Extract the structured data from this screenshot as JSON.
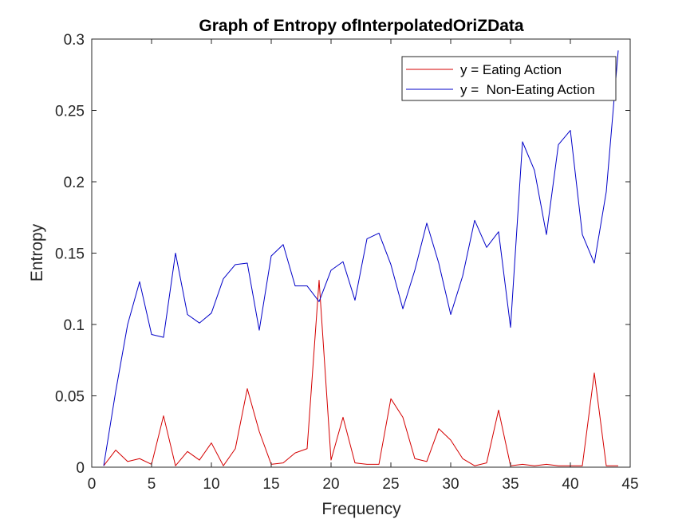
{
  "chart_data": {
    "type": "line",
    "title": "Graph of Entropy ofInterpolatedOriZData",
    "xlabel": "Frequency",
    "ylabel": "Entropy",
    "xlim": [
      0,
      45
    ],
    "ylim": [
      0,
      0.3
    ],
    "xticks": [
      0,
      5,
      10,
      15,
      20,
      25,
      30,
      35,
      40,
      45
    ],
    "yticks": [
      0,
      0.05,
      0.1,
      0.15,
      0.2,
      0.25,
      0.3
    ],
    "xtick_labels": [
      "0",
      "5",
      "10",
      "15",
      "20",
      "25",
      "30",
      "35",
      "40",
      "45"
    ],
    "ytick_labels": [
      "0",
      "0.05",
      "0.1",
      "0.15",
      "0.2",
      "0.25",
      "0.3"
    ],
    "grid": false,
    "legend_position": "top-right",
    "x": [
      1,
      2,
      3,
      4,
      5,
      6,
      7,
      8,
      9,
      10,
      11,
      12,
      13,
      14,
      15,
      16,
      17,
      18,
      19,
      20,
      21,
      22,
      23,
      24,
      25,
      26,
      27,
      28,
      29,
      30,
      31,
      32,
      33,
      34,
      35,
      36,
      37,
      38,
      39,
      40,
      41,
      42,
      43,
      44
    ],
    "series": [
      {
        "name": "y = Eating Action",
        "color": "#d40000",
        "values": [
          0.001,
          0.012,
          0.004,
          0.006,
          0.002,
          0.036,
          0.001,
          0.011,
          0.005,
          0.017,
          0.001,
          0.013,
          0.055,
          0.025,
          0.002,
          0.003,
          0.01,
          0.013,
          0.131,
          0.005,
          0.035,
          0.003,
          0.002,
          0.002,
          0.048,
          0.035,
          0.006,
          0.004,
          0.027,
          0.019,
          0.006,
          0.001,
          0.003,
          0.04,
          0.001,
          0.002,
          0.001,
          0.002,
          0.001,
          0.001,
          0.001,
          0.066,
          0.001,
          0.001
        ]
      },
      {
        "name": "y =  Non-Eating Action",
        "color": "#0000c8",
        "values": [
          0.001,
          0.053,
          0.1,
          0.13,
          0.093,
          0.091,
          0.15,
          0.107,
          0.101,
          0.108,
          0.132,
          0.142,
          0.143,
          0.096,
          0.148,
          0.156,
          0.127,
          0.127,
          0.116,
          0.138,
          0.144,
          0.117,
          0.16,
          0.164,
          0.142,
          0.111,
          0.138,
          0.171,
          0.143,
          0.107,
          0.134,
          0.173,
          0.154,
          0.165,
          0.098,
          0.228,
          0.208,
          0.163,
          0.226,
          0.236,
          0.163,
          0.143,
          0.193,
          0.292
        ]
      }
    ]
  }
}
